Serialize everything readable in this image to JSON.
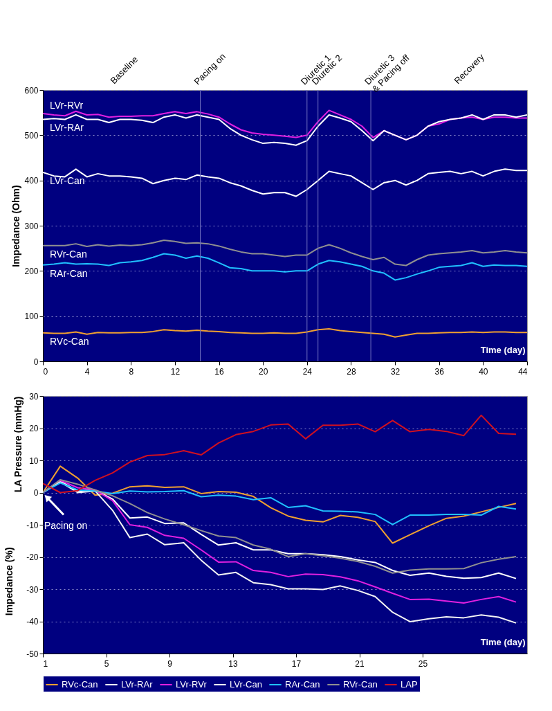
{
  "chart_data": [
    {
      "type": "line",
      "ylabel": "Impedance (Ohm)",
      "xlabel": "Time (day)",
      "x": [
        0,
        1,
        2,
        3,
        4,
        5,
        6,
        7,
        8,
        9,
        10,
        11,
        12,
        13,
        14,
        15,
        16,
        17,
        18,
        19,
        20,
        21,
        22,
        23,
        24,
        25,
        26,
        27,
        28,
        29,
        30,
        31,
        32,
        33,
        34,
        35,
        36,
        37,
        38,
        39,
        40,
        41,
        42,
        43,
        44
      ],
      "xlim": [
        0,
        44
      ],
      "xticks": [
        0,
        4,
        8,
        12,
        16,
        20,
        24,
        28,
        32,
        36,
        40,
        44
      ],
      "ylim": [
        0,
        600
      ],
      "yticks": [
        0,
        100,
        200,
        300,
        400,
        500,
        600
      ],
      "grid": "y",
      "legend": false,
      "series": [
        {
          "name": "LVr-RVr",
          "color": "#e020e0",
          "values": [
            548,
            545,
            543,
            553,
            545,
            546,
            540,
            542,
            542,
            543,
            543,
            548,
            552,
            548,
            552,
            547,
            540,
            525,
            512,
            505,
            502,
            500,
            498,
            495,
            500,
            530,
            555,
            545,
            535,
            520,
            495,
            510,
            500,
            490,
            500,
            520,
            525,
            535,
            538,
            540,
            535,
            540,
            540,
            538,
            538
          ]
        },
        {
          "name": "LVr-RAr",
          "color": "#ffffff",
          "values": [
            535,
            537,
            535,
            545,
            535,
            535,
            528,
            535,
            535,
            533,
            528,
            540,
            545,
            538,
            545,
            540,
            535,
            515,
            500,
            490,
            482,
            484,
            482,
            478,
            488,
            520,
            545,
            538,
            530,
            510,
            488,
            510,
            500,
            490,
            500,
            520,
            530,
            535,
            538,
            545,
            535,
            545,
            545,
            540,
            545
          ]
        },
        {
          "name": "LVr-Can",
          "color": "#ffffff",
          "values": [
            418,
            410,
            408,
            425,
            408,
            415,
            410,
            410,
            408,
            405,
            393,
            400,
            405,
            402,
            412,
            408,
            405,
            395,
            388,
            378,
            370,
            373,
            373,
            365,
            380,
            400,
            420,
            415,
            410,
            395,
            380,
            395,
            400,
            390,
            400,
            415,
            418,
            420,
            415,
            420,
            410,
            420,
            425,
            422,
            422
          ]
        },
        {
          "name": "RVr-Can",
          "color": "#909090",
          "values": [
            256,
            256,
            256,
            260,
            254,
            258,
            255,
            257,
            256,
            258,
            262,
            268,
            265,
            261,
            262,
            260,
            255,
            248,
            242,
            238,
            238,
            235,
            232,
            235,
            235,
            250,
            258,
            250,
            240,
            232,
            225,
            230,
            215,
            212,
            225,
            235,
            238,
            240,
            242,
            245,
            240,
            242,
            245,
            242,
            240
          ]
        },
        {
          "name": "RAr-Can",
          "color": "#20c0ff",
          "values": [
            213,
            215,
            218,
            215,
            216,
            215,
            212,
            218,
            220,
            223,
            230,
            238,
            235,
            228,
            233,
            228,
            218,
            207,
            205,
            200,
            200,
            200,
            198,
            200,
            200,
            215,
            223,
            220,
            215,
            210,
            200,
            195,
            180,
            185,
            193,
            200,
            208,
            210,
            212,
            218,
            210,
            213,
            212,
            212,
            210
          ]
        },
        {
          "name": "RVc-Can",
          "color": "#f0a030",
          "values": [
            63,
            62,
            62,
            65,
            60,
            64,
            63,
            63,
            64,
            64,
            66,
            70,
            68,
            67,
            69,
            67,
            66,
            64,
            63,
            62,
            62,
            63,
            62,
            62,
            65,
            70,
            72,
            68,
            66,
            64,
            62,
            60,
            54,
            58,
            62,
            62,
            63,
            64,
            64,
            65,
            64,
            65,
            65,
            64,
            64
          ]
        }
      ],
      "ref_lines": [
        {
          "axis": "x",
          "value": 14.3,
          "label": "Pacing on",
          "color": "#7070c0"
        },
        {
          "axis": "x",
          "value": 24,
          "label": "Diuretic 1",
          "color": "#7070c0"
        },
        {
          "axis": "x",
          "value": 25,
          "label": "Diuretic 2",
          "color": "#7070c0"
        },
        {
          "axis": "x",
          "value": 29.8,
          "label": "Diuretic 3\n& Pacing off",
          "color": "#7070c0"
        }
      ],
      "annotations": [
        "Baseline",
        "Recovery"
      ]
    },
    {
      "type": "line",
      "ylabel": "LA Pressure (mmHg)",
      "xlabel": "Time (day)",
      "x": [
        1.0,
        2.1,
        3.2,
        4.3,
        5.4,
        6.5,
        7.6,
        8.7,
        9.9,
        11.0,
        12.1,
        13.2,
        14.3,
        15.4,
        16.5,
        17.6,
        18.7,
        19.8,
        20.9,
        22.0,
        23.1,
        24.2,
        25.4,
        26.5,
        27.6,
        28.7,
        29.8,
        30.9
      ],
      "xlim": [
        1,
        31.6
      ],
      "xticks": [
        1,
        5,
        9,
        13,
        17,
        21,
        25
      ],
      "ylim": [
        -50,
        30
      ],
      "yticks": [
        -50,
        -40,
        -30,
        -20,
        -10,
        0,
        10,
        20,
        30
      ],
      "grid": "y",
      "legend": "bottom",
      "series": [
        {
          "name": "RVc-Can",
          "color": "#f0a030",
          "values": [
            0,
            8.2,
            4.5,
            -0.8,
            -0.2,
            1.8,
            2.1,
            1.6,
            1.8,
            -0.3,
            0.3,
            0.1,
            -1.2,
            -4.7,
            -7.3,
            -8.6,
            -9.1,
            -7.1,
            -7.7,
            -9.0,
            -15.7,
            -13.1,
            -10.3,
            -8.0,
            -7.3,
            -6.0,
            -4.6,
            -3.4
          ]
        },
        {
          "name": "LVr-RAr",
          "color": "#ffffff",
          "values": [
            0,
            3.5,
            0.5,
            0.8,
            -2.0,
            -7.9,
            -7.6,
            -9.6,
            -9.4,
            -13.0,
            -16.3,
            -15.6,
            -17.8,
            -17.8,
            -19.0,
            -19.0,
            -19.3,
            -19.9,
            -20.9,
            -21.7,
            -24.2,
            -25.7,
            -25.0,
            -26.0,
            -26.6,
            -26.4,
            -25.0,
            -26.7
          ]
        },
        {
          "name": "LVr-RVr",
          "color": "#e020e0",
          "values": [
            0,
            3.8,
            1.5,
            0.8,
            -2.5,
            -10.0,
            -10.8,
            -13.3,
            -14.2,
            -17.8,
            -21.6,
            -21.5,
            -24.2,
            -24.8,
            -26.1,
            -25.3,
            -25.5,
            -26.2,
            -27.4,
            -29.3,
            -31.3,
            -33.2,
            -33.1,
            -33.7,
            -34.3,
            -33.2,
            -32.3,
            -34.0
          ]
        },
        {
          "name": "LVr-Can",
          "color": "#f4f4f4",
          "values": [
            0,
            3.3,
            0,
            0.5,
            -5.5,
            -14.0,
            -12.9,
            -16.2,
            -15.6,
            -21.0,
            -25.6,
            -24.8,
            -28.0,
            -28.6,
            -29.9,
            -29.9,
            -30.1,
            -29.0,
            -30.4,
            -32.3,
            -37.2,
            -40.1,
            -39.2,
            -38.6,
            -38.9,
            -38.0,
            -38.7,
            -40.5
          ]
        },
        {
          "name": "RAr-Can",
          "color": "#20c0ff",
          "values": [
            0,
            3.0,
            0.8,
            0.5,
            -0.3,
            0.5,
            0.2,
            0.3,
            0.6,
            -1.3,
            -0.8,
            -1.1,
            -2.2,
            -1.6,
            -4.6,
            -4.1,
            -5.7,
            -5.8,
            -6.0,
            -6.8,
            -9.9,
            -7.0,
            -7.0,
            -6.8,
            -6.8,
            -7.0,
            -4.3,
            -5.1
          ]
        },
        {
          "name": "RVr-Can",
          "color": "#909090",
          "values": [
            0,
            4.0,
            2.6,
            0.8,
            -1.0,
            -3.4,
            -6.2,
            -8.2,
            -10.0,
            -11.8,
            -13.5,
            -14.0,
            -16.3,
            -17.6,
            -19.9,
            -19.0,
            -19.6,
            -20.4,
            -21.4,
            -22.9,
            -25.0,
            -24.1,
            -23.7,
            -23.7,
            -23.6,
            -21.8,
            -20.7,
            -19.9
          ]
        },
        {
          "name": "LAP",
          "color": "#d01020",
          "values": [
            2.8,
            0.0,
            0.6,
            3.8,
            6.1,
            9.5,
            11.5,
            11.8,
            13.0,
            11.7,
            15.4,
            18.0,
            19.0,
            21.0,
            21.3,
            16.7,
            20.9,
            20.9,
            21.3,
            18.9,
            22.4,
            18.9,
            19.6,
            19.0,
            17.7,
            24.0,
            18.4,
            18.1
          ]
        }
      ],
      "annotations": [
        {
          "text": "Pacing on",
          "x": 1,
          "y": 0
        },
        "Impedance (%)"
      ]
    }
  ]
}
